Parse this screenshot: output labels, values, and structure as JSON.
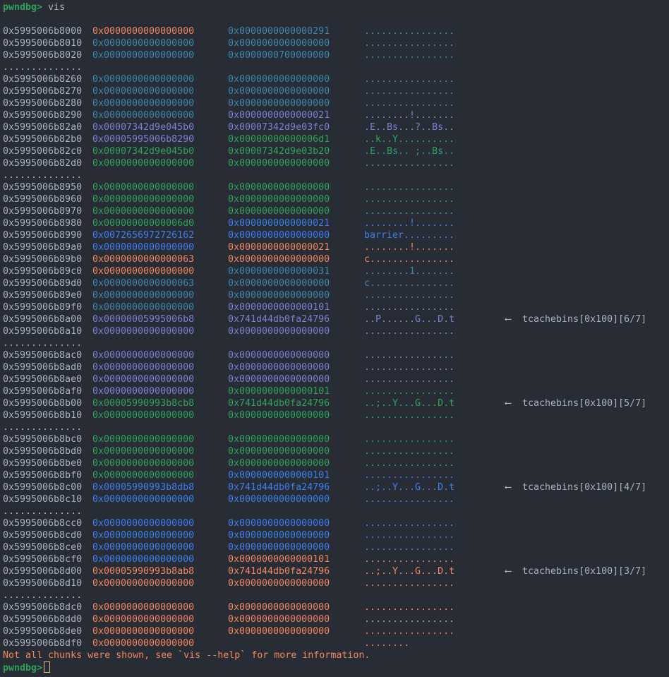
{
  "prompt": "pwndbg>",
  "command": " vis",
  "colors": {
    "o": "#f0875f",
    "t": "#3f86ad",
    "p": "#7b80d4",
    "g": "#2ea35b",
    "b": "#3d7ff0",
    "address": "#abb2bf"
  },
  "ellipsis": "..............",
  "rows": [
    {
      "addr": "0x5995006b8000",
      "a": "0x0000000000000000",
      "b": "0x0000000000000291",
      "ascii": "................",
      "c": [
        "o",
        "t",
        "t"
      ]
    },
    {
      "addr": "0x5995006b8010",
      "a": "0x0000000000000000",
      "b": "0x0000000000000000",
      "ascii": "................",
      "c": [
        "t",
        "t",
        "t"
      ]
    },
    {
      "addr": "0x5995006b8020",
      "a": "0x0000000000000000",
      "b": "0x0000000700000000",
      "ascii": "................",
      "c": [
        "t",
        "t",
        "t"
      ]
    },
    {
      "ellipsis": true
    },
    {
      "addr": "0x5995006b8260",
      "a": "0x0000000000000000",
      "b": "0x0000000000000000",
      "ascii": "................",
      "c": [
        "t",
        "t",
        "t"
      ]
    },
    {
      "addr": "0x5995006b8270",
      "a": "0x0000000000000000",
      "b": "0x0000000000000000",
      "ascii": "................",
      "c": [
        "t",
        "t",
        "t"
      ]
    },
    {
      "addr": "0x5995006b8280",
      "a": "0x0000000000000000",
      "b": "0x0000000000000000",
      "ascii": "................",
      "c": [
        "t",
        "t",
        "t"
      ]
    },
    {
      "addr": "0x5995006b8290",
      "a": "0x0000000000000000",
      "b": "0x0000000000000021",
      "ascii": "........!.......",
      "c": [
        "t",
        "p",
        "p"
      ]
    },
    {
      "addr": "0x5995006b82a0",
      "a": "0x00007342d9e045b0",
      "b": "0x00007342d9e03fc0",
      "ascii": ".E..Bs...?..Bs..",
      "c": [
        "p",
        "p",
        "p"
      ]
    },
    {
      "addr": "0x5995006b82b0",
      "a": "0x00005995006b8290",
      "b": "0x00000000000006d1",
      "ascii": "..k..Y..........",
      "c": [
        "p",
        "g",
        "g"
      ]
    },
    {
      "addr": "0x5995006b82c0",
      "a": "0x00007342d9e045b0",
      "b": "0x00007342d9e03b20",
      "ascii": ".E..Bs.. ;..Bs..",
      "c": [
        "g",
        "g",
        "g"
      ]
    },
    {
      "addr": "0x5995006b82d0",
      "a": "0x0000000000000000",
      "b": "0x0000000000000000",
      "ascii": "................",
      "c": [
        "g",
        "g",
        "g"
      ]
    },
    {
      "ellipsis": true
    },
    {
      "addr": "0x5995006b8950",
      "a": "0x0000000000000000",
      "b": "0x0000000000000000",
      "ascii": "................",
      "c": [
        "g",
        "g",
        "g"
      ]
    },
    {
      "addr": "0x5995006b8960",
      "a": "0x0000000000000000",
      "b": "0x0000000000000000",
      "ascii": "................",
      "c": [
        "g",
        "g",
        "g"
      ]
    },
    {
      "addr": "0x5995006b8970",
      "a": "0x0000000000000000",
      "b": "0x0000000000000000",
      "ascii": "................",
      "c": [
        "g",
        "g",
        "g"
      ]
    },
    {
      "addr": "0x5995006b8980",
      "a": "0x00000000000006d0",
      "b": "0x0000000000000021",
      "ascii": "........!.......",
      "c": [
        "g",
        "b",
        "b"
      ]
    },
    {
      "addr": "0x5995006b8990",
      "a": "0x0072656972726162",
      "b": "0x0000000000000000",
      "ascii": "barrier.........",
      "c": [
        "b",
        "b",
        "b"
      ]
    },
    {
      "addr": "0x5995006b89a0",
      "a": "0x0000000000000000",
      "b": "0x0000000000000021",
      "ascii": "........!.......",
      "c": [
        "b",
        "o",
        "o"
      ]
    },
    {
      "addr": "0x5995006b89b0",
      "a": "0x0000000000000063",
      "b": "0x0000000000000000",
      "ascii": "c...............",
      "c": [
        "o",
        "o",
        "o"
      ]
    },
    {
      "addr": "0x5995006b89c0",
      "a": "0x0000000000000000",
      "b": "0x0000000000000031",
      "ascii": "........1.......",
      "c": [
        "o",
        "t",
        "t"
      ]
    },
    {
      "addr": "0x5995006b89d0",
      "a": "0x0000000000000063",
      "b": "0x0000000000000000",
      "ascii": "c...............",
      "c": [
        "t",
        "t",
        "t"
      ]
    },
    {
      "addr": "0x5995006b89e0",
      "a": "0x0000000000000000",
      "b": "0x0000000000000000",
      "ascii": "................",
      "c": [
        "t",
        "t",
        "t"
      ]
    },
    {
      "addr": "0x5995006b89f0",
      "a": "0x0000000000000000",
      "b": "0x0000000000000101",
      "ascii": "................",
      "c": [
        "t",
        "p",
        "p"
      ]
    },
    {
      "addr": "0x5995006b8a00",
      "a": "0x00000005995006b8",
      "b": "0x741d44db0fa24796",
      "ascii": "..P......G...D.t",
      "c": [
        "p",
        "p",
        "p"
      ],
      "note": "⟵  tcachebins[0x100][6/7]"
    },
    {
      "addr": "0x5995006b8a10",
      "a": "0x0000000000000000",
      "b": "0x0000000000000000",
      "ascii": "................",
      "c": [
        "p",
        "p",
        "p"
      ]
    },
    {
      "ellipsis": true
    },
    {
      "addr": "0x5995006b8ac0",
      "a": "0x0000000000000000",
      "b": "0x0000000000000000",
      "ascii": "................",
      "c": [
        "p",
        "p",
        "p"
      ]
    },
    {
      "addr": "0x5995006b8ad0",
      "a": "0x0000000000000000",
      "b": "0x0000000000000000",
      "ascii": "................",
      "c": [
        "p",
        "p",
        "p"
      ]
    },
    {
      "addr": "0x5995006b8ae0",
      "a": "0x0000000000000000",
      "b": "0x0000000000000000",
      "ascii": "................",
      "c": [
        "p",
        "p",
        "p"
      ]
    },
    {
      "addr": "0x5995006b8af0",
      "a": "0x0000000000000000",
      "b": "0x0000000000000101",
      "ascii": "................",
      "c": [
        "p",
        "g",
        "g"
      ]
    },
    {
      "addr": "0x5995006b8b00",
      "a": "0x00005990993b8cb8",
      "b": "0x741d44db0fa24796",
      "ascii": "..;..Y...G...D.t",
      "c": [
        "g",
        "g",
        "g"
      ],
      "note": "⟵  tcachebins[0x100][5/7]"
    },
    {
      "addr": "0x5995006b8b10",
      "a": "0x0000000000000000",
      "b": "0x0000000000000000",
      "ascii": "................",
      "c": [
        "g",
        "g",
        "g"
      ]
    },
    {
      "ellipsis": true
    },
    {
      "addr": "0x5995006b8bc0",
      "a": "0x0000000000000000",
      "b": "0x0000000000000000",
      "ascii": "................",
      "c": [
        "g",
        "g",
        "g"
      ]
    },
    {
      "addr": "0x5995006b8bd0",
      "a": "0x0000000000000000",
      "b": "0x0000000000000000",
      "ascii": "................",
      "c": [
        "g",
        "g",
        "g"
      ]
    },
    {
      "addr": "0x5995006b8be0",
      "a": "0x0000000000000000",
      "b": "0x0000000000000000",
      "ascii": "................",
      "c": [
        "g",
        "g",
        "g"
      ]
    },
    {
      "addr": "0x5995006b8bf0",
      "a": "0x0000000000000000",
      "b": "0x0000000000000101",
      "ascii": "................",
      "c": [
        "g",
        "b",
        "b"
      ]
    },
    {
      "addr": "0x5995006b8c00",
      "a": "0x00005990993b8db8",
      "b": "0x741d44db0fa24796",
      "ascii": "..;..Y...G...D.t",
      "c": [
        "b",
        "b",
        "b"
      ],
      "note": "⟵  tcachebins[0x100][4/7]"
    },
    {
      "addr": "0x5995006b8c10",
      "a": "0x0000000000000000",
      "b": "0x0000000000000000",
      "ascii": "................",
      "c": [
        "b",
        "b",
        "b"
      ]
    },
    {
      "ellipsis": true
    },
    {
      "addr": "0x5995006b8cc0",
      "a": "0x0000000000000000",
      "b": "0x0000000000000000",
      "ascii": "................",
      "c": [
        "b",
        "b",
        "b"
      ]
    },
    {
      "addr": "0x5995006b8cd0",
      "a": "0x0000000000000000",
      "b": "0x0000000000000000",
      "ascii": "................",
      "c": [
        "b",
        "b",
        "b"
      ]
    },
    {
      "addr": "0x5995006b8ce0",
      "a": "0x0000000000000000",
      "b": "0x0000000000000000",
      "ascii": "................",
      "c": [
        "b",
        "b",
        "b"
      ]
    },
    {
      "addr": "0x5995006b8cf0",
      "a": "0x0000000000000000",
      "b": "0x0000000000000101",
      "ascii": "................",
      "c": [
        "b",
        "o",
        "o"
      ]
    },
    {
      "addr": "0x5995006b8d00",
      "a": "0x00005990993b8ab8",
      "b": "0x741d44db0fa24796",
      "ascii": "..;..Y...G...D.t",
      "c": [
        "o",
        "o",
        "o"
      ],
      "note": "⟵  tcachebins[0x100][3/7]"
    },
    {
      "addr": "0x5995006b8d10",
      "a": "0x0000000000000000",
      "b": "0x0000000000000000",
      "ascii": "................",
      "c": [
        "o",
        "o",
        "o"
      ]
    },
    {
      "ellipsis": true
    },
    {
      "addr": "0x5995006b8dc0",
      "a": "0x0000000000000000",
      "b": "0x0000000000000000",
      "ascii": "................",
      "c": [
        "o",
        "o",
        "o"
      ]
    },
    {
      "addr": "0x5995006b8dd0",
      "a": "0x0000000000000000",
      "b": "0x0000000000000000",
      "ascii": "................",
      "c": [
        "o",
        "o",
        "o"
      ]
    },
    {
      "addr": "0x5995006b8de0",
      "a": "0x0000000000000000",
      "b": "0x0000000000000000",
      "ascii": "................",
      "c": [
        "o",
        "o",
        "o"
      ]
    },
    {
      "addr": "0x5995006b8df0",
      "a": "0x0000000000000000",
      "b": "",
      "ascii": "........",
      "c": [
        "o",
        "o",
        "o"
      ]
    }
  ],
  "footer_message": "Not all chunks were shown, see `vis --help` for more information."
}
